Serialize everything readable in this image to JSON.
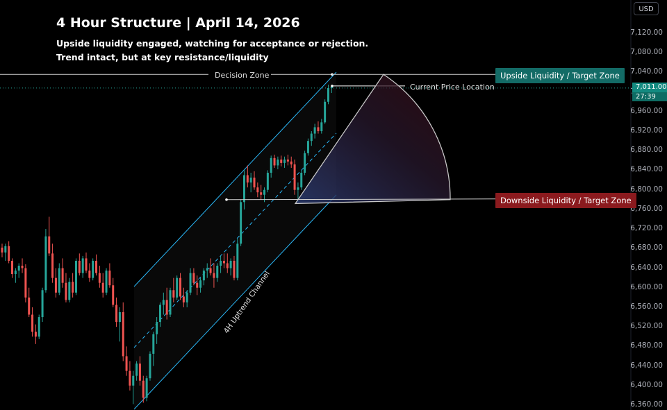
{
  "header": {
    "title": "4 Hour Structure | April 14, 2026",
    "subtitle_line1": "Upside liquidity engaged, watching for acceptance or rejection.",
    "subtitle_line2": "Trend intact, but at key resistance/liquidity"
  },
  "currency_button": "USD",
  "annotations": {
    "decision_zone": "Decision Zone",
    "current_price_location": "Current Price Location",
    "upside_zone": "Upside Liquidity / Target Zone",
    "downside_zone": "Downside Liquidity / Target Zone",
    "channel_label": "4H Uptrend Channel"
  },
  "price_tag": {
    "price": "7,011.00",
    "countdown": "27:39"
  },
  "colors": {
    "up": "#26a69a",
    "down": "#ef5350",
    "channel": "#29b6f6",
    "upside_zone_bg": "#136b66",
    "downside_zone_bg": "#8b1a1e"
  },
  "chart_data": {
    "type": "candlestick",
    "ylim": [
      6350,
      7160
    ],
    "yticks": [
      "7,120.00",
      "7,080.00",
      "7,040.00",
      "7,000.00",
      "6,960.00",
      "6,920.00",
      "6,880.00",
      "6,840.00",
      "6,800.00",
      "6,760.00",
      "6,720.00",
      "6,680.00",
      "6,640.00",
      "6,600.00",
      "6,560.00",
      "6,520.00",
      "6,480.00",
      "6,440.00",
      "6,400.00",
      "6,360.00"
    ],
    "ytick_values": [
      7120,
      7080,
      7040,
      7000,
      6960,
      6920,
      6880,
      6840,
      6800,
      6760,
      6720,
      6680,
      6640,
      6600,
      6560,
      6520,
      6480,
      6440,
      6400,
      6360
    ],
    "levels": {
      "decision_zone": 7036,
      "downside_target": 6780,
      "current_price": 7011
    },
    "candles": [
      [
        6682,
        6690,
        6662,
        6672
      ],
      [
        6672,
        6690,
        6655,
        6685
      ],
      [
        6685,
        6695,
        6650,
        6655
      ],
      [
        6655,
        6660,
        6620,
        6628
      ],
      [
        6628,
        6640,
        6610,
        6635
      ],
      [
        6635,
        6650,
        6620,
        6645
      ],
      [
        6645,
        6660,
        6630,
        6640
      ],
      [
        6640,
        6648,
        6570,
        6580
      ],
      [
        6580,
        6600,
        6540,
        6545
      ],
      [
        6545,
        6560,
        6500,
        6510
      ],
      [
        6510,
        6525,
        6485,
        6500
      ],
      [
        6500,
        6545,
        6495,
        6540
      ],
      [
        6540,
        6600,
        6530,
        6595
      ],
      [
        6595,
        6720,
        6590,
        6705
      ],
      [
        6705,
        6745,
        6665,
        6670
      ],
      [
        6670,
        6690,
        6610,
        6620
      ],
      [
        6620,
        6640,
        6580,
        6590
      ],
      [
        6590,
        6650,
        6585,
        6640
      ],
      [
        6640,
        6660,
        6600,
        6610
      ],
      [
        6610,
        6630,
        6570,
        6575
      ],
      [
        6575,
        6620,
        6570,
        6612
      ],
      [
        6612,
        6630,
        6580,
        6590
      ],
      [
        6590,
        6660,
        6585,
        6655
      ],
      [
        6655,
        6670,
        6625,
        6630
      ],
      [
        6630,
        6665,
        6620,
        6660
      ],
      [
        6660,
        6672,
        6630,
        6635
      ],
      [
        6635,
        6650,
        6612,
        6620
      ],
      [
        6620,
        6660,
        6615,
        6655
      ],
      [
        6655,
        6668,
        6625,
        6630
      ],
      [
        6630,
        6645,
        6600,
        6610
      ],
      [
        6610,
        6630,
        6580,
        6590
      ],
      [
        6590,
        6640,
        6585,
        6635
      ],
      [
        6635,
        6650,
        6600,
        6605
      ],
      [
        6605,
        6620,
        6560,
        6565
      ],
      [
        6565,
        6580,
        6520,
        6530
      ],
      [
        6530,
        6560,
        6490,
        6550
      ],
      [
        6550,
        6570,
        6450,
        6460
      ],
      [
        6460,
        6480,
        6420,
        6430
      ],
      [
        6430,
        6450,
        6390,
        6400
      ],
      [
        6400,
        6430,
        6362,
        6420
      ],
      [
        6420,
        6450,
        6410,
        6445
      ],
      [
        6445,
        6460,
        6400,
        6410
      ],
      [
        6410,
        6420,
        6365,
        6375
      ],
      [
        6375,
        6420,
        6368,
        6415
      ],
      [
        6415,
        6470,
        6410,
        6465
      ],
      [
        6465,
        6510,
        6440,
        6505
      ],
      [
        6505,
        6540,
        6485,
        6530
      ],
      [
        6530,
        6570,
        6520,
        6565
      ],
      [
        6565,
        6590,
        6545,
        6575
      ],
      [
        6575,
        6600,
        6535,
        6545
      ],
      [
        6545,
        6600,
        6540,
        6595
      ],
      [
        6595,
        6620,
        6570,
        6580
      ],
      [
        6580,
        6625,
        6575,
        6620
      ],
      [
        6620,
        6630,
        6575,
        6582
      ],
      [
        6582,
        6600,
        6560,
        6570
      ],
      [
        6570,
        6595,
        6560,
        6590
      ],
      [
        6590,
        6640,
        6585,
        6630
      ],
      [
        6630,
        6640,
        6605,
        6610
      ],
      [
        6610,
        6625,
        6585,
        6600
      ],
      [
        6600,
        6620,
        6590,
        6615
      ],
      [
        6615,
        6640,
        6605,
        6635
      ],
      [
        6635,
        6650,
        6620,
        6640
      ],
      [
        6640,
        6660,
        6625,
        6630
      ],
      [
        6630,
        6650,
        6600,
        6620
      ],
      [
        6620,
        6650,
        6612,
        6645
      ],
      [
        6645,
        6665,
        6630,
        6655
      ],
      [
        6655,
        6670,
        6640,
        6650
      ],
      [
        6650,
        6670,
        6630,
        6640
      ],
      [
        6640,
        6660,
        6625,
        6655
      ],
      [
        6655,
        6665,
        6615,
        6620
      ],
      [
        6620,
        6700,
        6615,
        6690
      ],
      [
        6690,
        6780,
        6685,
        6775
      ],
      [
        6775,
        6840,
        6760,
        6830
      ],
      [
        6830,
        6850,
        6805,
        6815
      ],
      [
        6815,
        6835,
        6795,
        6825
      ],
      [
        6825,
        6838,
        6800,
        6805
      ],
      [
        6805,
        6815,
        6785,
        6795
      ],
      [
        6795,
        6810,
        6780,
        6790
      ],
      [
        6790,
        6805,
        6775,
        6800
      ],
      [
        6800,
        6840,
        6795,
        6835
      ],
      [
        6835,
        6870,
        6825,
        6865
      ],
      [
        6865,
        6872,
        6845,
        6850
      ],
      [
        6850,
        6868,
        6842,
        6862
      ],
      [
        6862,
        6870,
        6848,
        6855
      ],
      [
        6855,
        6868,
        6845,
        6862
      ],
      [
        6862,
        6872,
        6850,
        6858
      ],
      [
        6858,
        6868,
        6845,
        6852
      ],
      [
        6852,
        6862,
        6790,
        6800
      ],
      [
        6800,
        6815,
        6775,
        6805
      ],
      [
        6805,
        6840,
        6800,
        6835
      ],
      [
        6835,
        6880,
        6830,
        6875
      ],
      [
        6875,
        6905,
        6870,
        6900
      ],
      [
        6900,
        6920,
        6890,
        6915
      ],
      [
        6915,
        6935,
        6905,
        6928
      ],
      [
        6928,
        6940,
        6915,
        6920
      ],
      [
        6920,
        6945,
        6915,
        6938
      ],
      [
        6938,
        6985,
        6935,
        6980
      ],
      [
        6980,
        7015,
        6975,
        7008
      ],
      [
        7008,
        7014,
        6998,
        7011
      ]
    ]
  }
}
